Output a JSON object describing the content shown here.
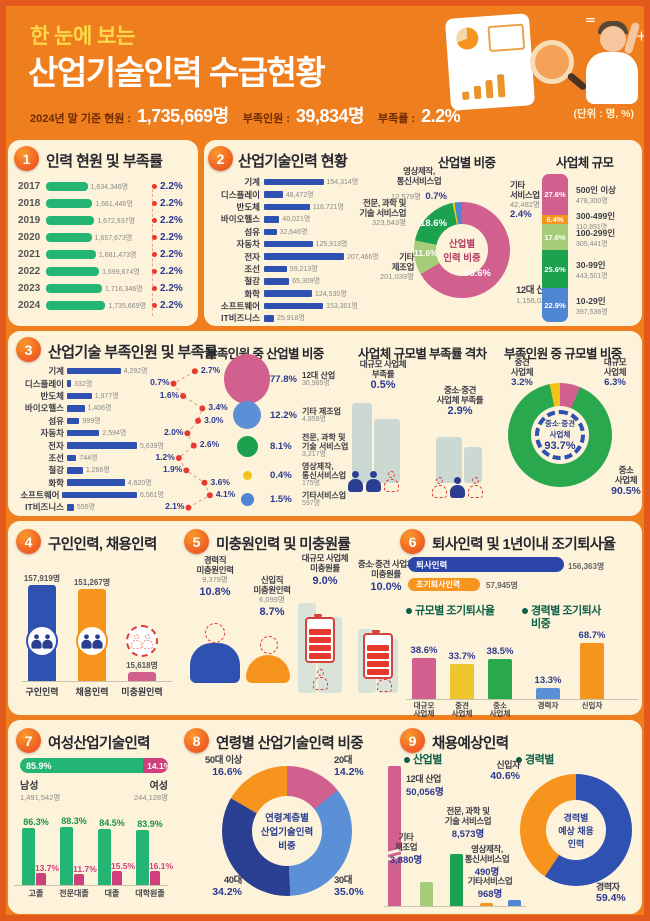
{
  "page": {
    "unit_note": "(단위 : 명, %)"
  },
  "header": {
    "pretitle": "한 눈에 보는",
    "title": "산업기술인력 수급현황",
    "stats": [
      {
        "label": "2024년 말 기준 현원 :",
        "value": "1,735,669명"
      },
      {
        "label": "부족인원 :",
        "value": "39,834명"
      },
      {
        "label": "부족률 :",
        "value": "2.2%"
      }
    ]
  },
  "chart_data": [
    {
      "id": "headcount-by-year",
      "type": "bar",
      "no": "1",
      "title": "인력 현원 및 부족률",
      "rows": [
        {
          "year": "2017",
          "value": 1634346,
          "value_label": "1,634,346명",
          "rate_label": "2.2%"
        },
        {
          "year": "2018",
          "value": 1661446,
          "value_label": "1,661,446명",
          "rate_label": "2.2%"
        },
        {
          "year": "2019",
          "value": 1672937,
          "value_label": "1,672,937명",
          "rate_label": "2.2%"
        },
        {
          "year": "2020",
          "value": 1657673,
          "value_label": "1,657,673명",
          "rate_label": "2.2%"
        },
        {
          "year": "2021",
          "value": 1681473,
          "value_label": "1,681,473명",
          "rate_label": "2.2%"
        },
        {
          "year": "2022",
          "value": 1699674,
          "value_label": "1,699,674명",
          "rate_label": "2.2%"
        },
        {
          "year": "2023",
          "value": 1716346,
          "value_label": "1,716,346명",
          "rate_label": "2.2%"
        },
        {
          "year": "2024",
          "value": 1735669,
          "value_label": "1,735,669명",
          "rate_label": "2.2%"
        }
      ]
    },
    {
      "id": "headcount-by-industry",
      "type": "bar",
      "no": "2",
      "title": "산업기술인력 현황",
      "rows": [
        {
          "label": "기계",
          "value": 154314,
          "value_label": "154,314명"
        },
        {
          "label": "디스플레이",
          "value": 48472,
          "value_label": "48,472명"
        },
        {
          "label": "반도체",
          "value": 118721,
          "value_label": "118,721명"
        },
        {
          "label": "바이오헬스",
          "value": 40021,
          "value_label": "40,021명"
        },
        {
          "label": "섬유",
          "value": 32646,
          "value_label": "32,646명"
        },
        {
          "label": "자동차",
          "value": 125913,
          "value_label": "125,913명"
        },
        {
          "label": "전자",
          "value": 207466,
          "value_label": "207,466명"
        },
        {
          "label": "조선",
          "value": 59213,
          "value_label": "59,213명"
        },
        {
          "label": "철강",
          "value": 65309,
          "value_label": "65,309명"
        },
        {
          "label": "화학",
          "value": 124530,
          "value_label": "124,530명"
        },
        {
          "label": "소프트웨어",
          "value": 153301,
          "value_label": "153,301명"
        },
        {
          "label": "IT비즈니스",
          "value": 25918,
          "value_label": "25,918명"
        }
      ]
    },
    {
      "id": "industry-share",
      "type": "pie",
      "title": "산업별 비중",
      "center": [
        "산업별",
        "인력 비중"
      ],
      "slices": [
        {
          "name": "12대 산업",
          "lines": [
            "12대 산업"
          ],
          "pct": 66.6,
          "pct_label": "66.6%",
          "value_label": "1,156,025명",
          "color": "#d2608e"
        },
        {
          "name": "기타 제조업",
          "lines": [
            "기타",
            "제조업"
          ],
          "pct": 11.6,
          "pct_label": "11.6%",
          "value_label": "201,039명",
          "color": "#a5cd79"
        },
        {
          "name": "전문, 과학 및 기술 서비스업",
          "lines": [
            "전문, 과학 및",
            "기술 서비스업"
          ],
          "pct": 18.6,
          "pct_label": "18.6%",
          "value_label": "323,543명",
          "color": "#1ca14f"
        },
        {
          "name": "영상제작, 통신서비스업",
          "lines": [
            "영상제작,",
            "통신서비스업"
          ],
          "pct": 0.7,
          "pct_label": "0.7%",
          "value_label": "12,579명",
          "color": "#f2c318"
        },
        {
          "name": "기타 서비스업",
          "lines": [
            "기타",
            "서비스업"
          ],
          "pct": 2.4,
          "pct_label": "2.4%",
          "value_label": "42,482명",
          "color": "#4f86d4"
        }
      ]
    },
    {
      "id": "company-size",
      "type": "bar",
      "title": "사업체 규모",
      "segments": [
        {
          "name": "500인 이상",
          "pct": 27.6,
          "pct_label": "27.6%",
          "value_label": "478,300명",
          "color": "#d2608e"
        },
        {
          "name": "300-499인",
          "pct": 6.4,
          "pct_label": "6.4%",
          "value_label": "110,891명",
          "color": "#f7941d"
        },
        {
          "name": "100-299인",
          "pct": 17.6,
          "pct_label": "17.6%",
          "value_label": "305,441명",
          "color": "#a5cd79"
        },
        {
          "name": "30-99인",
          "pct": 25.6,
          "pct_label": "25.6%",
          "value_label": "443,501명",
          "color": "#1ca14f"
        },
        {
          "name": "10-29인",
          "pct": 22.9,
          "pct_label": "22.9%",
          "value_label": "397,536명",
          "color": "#4f86d4"
        }
      ]
    },
    {
      "id": "shortage-by-industry",
      "type": "bar",
      "no": "3",
      "title": "산업기술 부족인원 및 부족률",
      "rows": [
        {
          "label": "기계",
          "value": 4292,
          "value_label": "4,292명",
          "rate": 2.7,
          "rate_label": "2.7%"
        },
        {
          "label": "디스플레이",
          "value": 332,
          "value_label": "332명",
          "rate": 0.7,
          "rate_label": "0.7%"
        },
        {
          "label": "반도체",
          "value": 1977,
          "value_label": "1,977명",
          "rate": 1.6,
          "rate_label": "1.6%"
        },
        {
          "label": "바이오헬스",
          "value": 1406,
          "value_label": "1,406명",
          "rate": 3.4,
          "rate_label": "3.4%"
        },
        {
          "label": "섬유",
          "value": 999,
          "value_label": "999명",
          "rate": 3.0,
          "rate_label": "3.0%"
        },
        {
          "label": "자동차",
          "value": 2594,
          "value_label": "2,594명",
          "rate": 2.0,
          "rate_label": "2.0%"
        },
        {
          "label": "전자",
          "value": 5639,
          "value_label": "5,639명",
          "rate": 2.6,
          "rate_label": "2.6%"
        },
        {
          "label": "조선",
          "value": 744,
          "value_label": "744명",
          "rate": 1.2,
          "rate_label": "1.2%"
        },
        {
          "label": "철강",
          "value": 1266,
          "value_label": "1,266명",
          "rate": 1.9,
          "rate_label": "1.9%"
        },
        {
          "label": "화학",
          "value": 4620,
          "value_label": "4,620명",
          "rate": 3.6,
          "rate_label": "3.6%"
        },
        {
          "label": "소프트웨어",
          "value": 6561,
          "value_label": "6,561명",
          "rate": 4.1,
          "rate_label": "4.1%"
        },
        {
          "label": "IT비즈니스",
          "value": 555,
          "value_label": "555명",
          "rate": 2.1,
          "rate_label": "2.1%"
        }
      ]
    },
    {
      "id": "shortage-share-by-industry",
      "type": "pie",
      "title": "부족인원 중 산업별 비중",
      "items": [
        {
          "pct": 77.8,
          "pct_label": "77.8%",
          "lines": [
            "12대 산업"
          ],
          "value_label": "30,985명",
          "color": "#d2608e"
        },
        {
          "pct": 12.2,
          "pct_label": "12.2%",
          "lines": [
            "기타 제조업"
          ],
          "value_label": "4,859명",
          "color": "#5b8fd6"
        },
        {
          "pct": 8.1,
          "pct_label": "8.1%",
          "lines": [
            "전문, 과학 및",
            "기술 서비스업"
          ],
          "value_label": "3,217명",
          "color": "#1ca14f"
        },
        {
          "pct": 0.4,
          "pct_label": "0.4%",
          "lines": [
            "영상제작,",
            "통신서비스업"
          ],
          "value_label": "175명",
          "color": "#f2c318"
        },
        {
          "pct": 1.5,
          "pct_label": "1.5%",
          "lines": [
            "기타서비스업"
          ],
          "value_label": "597명",
          "color": "#4f86d4"
        }
      ]
    },
    {
      "id": "shortage-rate-gap",
      "type": "table",
      "title": "사업체 규모별 부족률 격차",
      "large": {
        "lines": [
          "대규모 사업체",
          "부족률"
        ],
        "rate_label": "0.5%"
      },
      "sme": {
        "lines": [
          "중소·중견",
          "사업체 부족률"
        ],
        "rate_label": "2.9%"
      }
    },
    {
      "id": "shortage-share-by-size",
      "type": "pie",
      "title": "부족인원 중 규모별 비중",
      "slices": [
        {
          "name_lines": [
            "대규모",
            "사업체"
          ],
          "pct": 6.3,
          "pct_label": "6.3%",
          "color": "#d2608e"
        },
        {
          "name_lines": [
            "중소",
            "사업체"
          ],
          "pct": 90.5,
          "pct_label": "90.5%",
          "color": "#2aa84e"
        },
        {
          "name_lines": [
            "중견",
            "사업체"
          ],
          "pct": 3.2,
          "pct_label": "3.2%",
          "color": "#f2c318"
        }
      ],
      "center_lines": [
        "중소·중견",
        "사업체"
      ],
      "center_pct": "93.7%"
    },
    {
      "id": "job-openings",
      "type": "bar",
      "no": "4",
      "title": "구인인력, 채용인력",
      "bars": [
        {
          "name": "구인인력",
          "value": 157919,
          "value_label": "157,919명",
          "color": "#2e51b2"
        },
        {
          "name": "채용인력",
          "value": 151267,
          "value_label": "151,267명",
          "color": "#f7941d"
        },
        {
          "name": "미충원인력",
          "value": 15618,
          "value_label": "15,618명",
          "color": "#d2608e"
        }
      ]
    },
    {
      "id": "unfilled",
      "type": "table",
      "no": "5",
      "title": "미충원인력 및 미충원률",
      "items": [
        {
          "lines": [
            "경력직",
            "미충원인력"
          ],
          "value_label": "9,379명",
          "rate_label": "10.8%",
          "color": "#2e51b2"
        },
        {
          "lines": [
            "신입직",
            "미충원인력"
          ],
          "value_label": "6,099명",
          "rate_label": "8.7%",
          "color": "#f7941d"
        },
        {
          "lines": [
            "대규모 사업체",
            "미충원률"
          ],
          "rate_label": "9.0%"
        },
        {
          "lines": [
            "중소·중견 사업체",
            "미충원률"
          ],
          "rate_label": "10.0%"
        }
      ]
    },
    {
      "id": "turnover",
      "type": "bar",
      "no": "6",
      "title": "퇴사인력 및 1년이내 조기퇴사율",
      "leavers": {
        "label": "퇴사인력",
        "value_label": "156,363명"
      },
      "early_leavers": {
        "label": "조기퇴사인력",
        "value_label": "57,945명"
      },
      "by_size": {
        "title": "규모별 조기퇴사율",
        "bars": [
          {
            "name_lines": [
              "대규모",
              "사업체"
            ],
            "pct": 38.6,
            "pct_label": "38.6%",
            "color": "#d2608e"
          },
          {
            "name_lines": [
              "중견",
              "사업체"
            ],
            "pct": 33.7,
            "pct_label": "33.7%",
            "color": "#edc52c"
          },
          {
            "name_lines": [
              "중소",
              "사업체"
            ],
            "pct": 38.5,
            "pct_label": "38.5%",
            "color": "#2aa84e"
          }
        ]
      },
      "by_career": {
        "title_lines": [
          "경력별 조기퇴사",
          "비중"
        ],
        "bars": [
          {
            "name_lines": [
              "경력자"
            ],
            "pct": 13.3,
            "pct_label": "13.3%",
            "color": "#5b8fd6"
          },
          {
            "name_lines": [
              "신입자"
            ],
            "pct": 68.7,
            "pct_label": "68.7%",
            "color": "#f7941d"
          }
        ]
      }
    },
    {
      "id": "female-workforce",
      "type": "bar",
      "no": "7",
      "title": "여성산업기술인력",
      "male": {
        "name": "남성",
        "pct": 85.9,
        "pct_label": "85.9%",
        "value_label": "1,491,542명",
        "color": "#22b573"
      },
      "female": {
        "name": "여성",
        "pct": 14.1,
        "pct_label": "14.1%",
        "value_label": "244,128명",
        "color": "#cf3e7d"
      },
      "groups": [
        {
          "name": "고졸",
          "male_pct": 86.3,
          "male_label": "86.3%",
          "female_pct": 13.7,
          "female_label": "13.7%"
        },
        {
          "name": "전문대졸",
          "male_pct": 88.3,
          "male_label": "88.3%",
          "female_pct": 11.7,
          "female_label": "11.7%"
        },
        {
          "name": "대졸",
          "male_pct": 84.5,
          "male_label": "84.5%",
          "female_pct": 15.5,
          "female_label": "15.5%"
        },
        {
          "name": "대학원졸",
          "male_pct": 83.9,
          "male_label": "83.9%",
          "female_pct": 16.1,
          "female_label": "16.1%"
        }
      ]
    },
    {
      "id": "age-share",
      "type": "pie",
      "no": "8",
      "title": "연령별 산업기술인력 비중",
      "center_lines": [
        "연령계층별",
        "산업기술인력",
        "비중"
      ],
      "slices": [
        {
          "name": "20대",
          "pct": 14.2,
          "pct_label": "14.2%",
          "color": "#d2608e"
        },
        {
          "name": "30대",
          "pct": 35.0,
          "pct_label": "35.0%",
          "color": "#5b8fd6"
        },
        {
          "name": "40대",
          "pct": 34.2,
          "pct_label": "34.2%",
          "color": "#2b3f92"
        },
        {
          "name": "50대 이상",
          "pct": 16.6,
          "pct_label": "16.6%",
          "color": "#f7941d"
        }
      ]
    },
    {
      "id": "expected-hires",
      "type": "bar",
      "no": "9",
      "title": "채용예상인력",
      "by_industry": {
        "title": "산업별",
        "bars": [
          {
            "lines": [
              "12대 산업"
            ],
            "value": 50056,
            "value_label": "50,056명",
            "color": "#d2608e",
            "break": true
          },
          {
            "lines": [
              "기타",
              "제조업"
            ],
            "value": 3880,
            "value_label": "3,880명",
            "color": "#a5cd79"
          },
          {
            "lines": [
              "전문, 과학 및",
              "기술 서비스업"
            ],
            "value": 8573,
            "value_label": "8,573명",
            "color": "#1ca14f"
          },
          {
            "lines": [
              "영상제작,",
              "통신서비스업"
            ],
            "value": 490,
            "value_label": "490명",
            "color": "#f7941d"
          },
          {
            "lines": [
              "기타서비스업"
            ],
            "value": 968,
            "value_label": "968명",
            "color": "#4f86d4"
          }
        ]
      },
      "by_career": {
        "title": "경력별",
        "center_lines": [
          "경력별",
          "예상 채용",
          "인력"
        ],
        "slices": [
          {
            "name": "경력자",
            "pct": 59.4,
            "pct_label": "59.4%",
            "color": "#2e51b2"
          },
          {
            "name": "신입자",
            "pct": 40.6,
            "pct_label": "40.6%",
            "color": "#f7941d"
          }
        ]
      }
    }
  ]
}
